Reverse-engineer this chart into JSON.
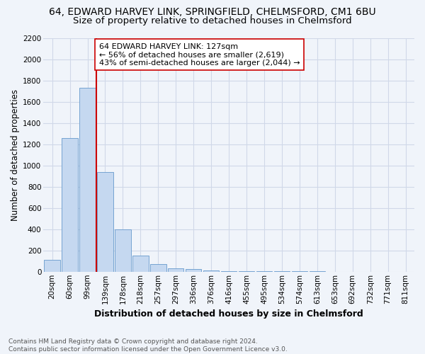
{
  "title": "64, EDWARD HARVEY LINK, SPRINGFIELD, CHELMSFORD, CM1 6BU",
  "subtitle": "Size of property relative to detached houses in Chelmsford",
  "xlabel": "Distribution of detached houses by size in Chelmsford",
  "ylabel": "Number of detached properties",
  "footer_line1": "Contains HM Land Registry data © Crown copyright and database right 2024.",
  "footer_line2": "Contains public sector information licensed under the Open Government Licence v3.0.",
  "bar_labels": [
    "20sqm",
    "60sqm",
    "99sqm",
    "139sqm",
    "178sqm",
    "218sqm",
    "257sqm",
    "297sqm",
    "336sqm",
    "376sqm",
    "416sqm",
    "455sqm",
    "495sqm",
    "534sqm",
    "574sqm",
    "613sqm",
    "653sqm",
    "692sqm",
    "732sqm",
    "771sqm",
    "811sqm"
  ],
  "bar_values": [
    115,
    1260,
    1730,
    940,
    400,
    150,
    75,
    35,
    25,
    15,
    8,
    5,
    4,
    3,
    2,
    2,
    1,
    1,
    1,
    1,
    1
  ],
  "bar_color": "#c5d8f0",
  "bar_edge_color": "#6699cc",
  "grid_color": "#d0d8e8",
  "background_color": "#f0f4fa",
  "vline_x_index": 2.5,
  "vline_color": "#cc0000",
  "annotation_text": "64 EDWARD HARVEY LINK: 127sqm\n← 56% of detached houses are smaller (2,619)\n43% of semi-detached houses are larger (2,044) →",
  "annotation_box_color": "#ffffff",
  "annotation_box_edge_color": "#cc0000",
  "ylim": [
    0,
    2200
  ],
  "yticks": [
    0,
    200,
    400,
    600,
    800,
    1000,
    1200,
    1400,
    1600,
    1800,
    2000,
    2200
  ],
  "title_fontsize": 10,
  "subtitle_fontsize": 9.5,
  "ylabel_fontsize": 8.5,
  "xlabel_fontsize": 9,
  "tick_fontsize": 7.5,
  "footer_fontsize": 6.5,
  "annotation_fontsize": 8
}
